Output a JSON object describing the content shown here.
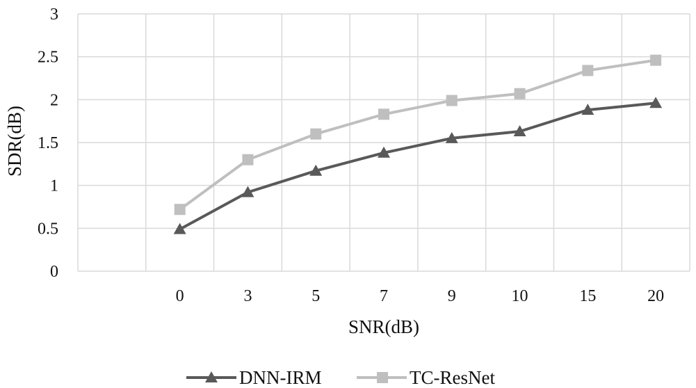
{
  "chart_data": {
    "type": "line",
    "title": "",
    "xlabel": "SNR(dB)",
    "ylabel": "SDR(dB)",
    "categories": [
      "0",
      "3",
      "5",
      "7",
      "9",
      "10",
      "15",
      "20"
    ],
    "ylim": [
      0,
      3
    ],
    "yticks": [
      0,
      0.5,
      1,
      1.5,
      2,
      2.5,
      3
    ],
    "ytick_labels": [
      "0",
      "0.5",
      "1",
      "1.5",
      "2",
      "2.5",
      "3"
    ],
    "grid": true,
    "legend": "bottom",
    "series": [
      {
        "name": "DNN-IRM",
        "values": [
          0.49,
          0.92,
          1.17,
          1.38,
          1.55,
          1.63,
          1.88,
          1.96
        ],
        "color": "#595959",
        "marker": "triangle"
      },
      {
        "name": "TC-ResNet",
        "values": [
          0.72,
          1.3,
          1.6,
          1.83,
          1.99,
          2.07,
          2.34,
          2.46
        ],
        "color": "#bfbfbf",
        "marker": "square"
      }
    ]
  }
}
